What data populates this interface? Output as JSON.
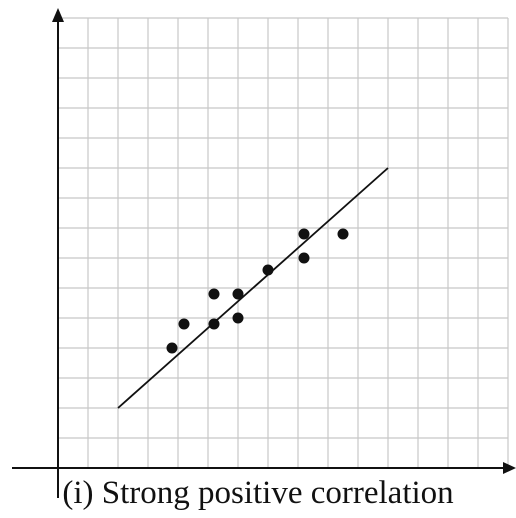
{
  "chart_data": {
    "type": "scatter",
    "title": "(i) Strong positive correlation",
    "grid": true,
    "xlim": [
      0,
      15
    ],
    "ylim": [
      0,
      15
    ],
    "points": [
      {
        "x": 3.8,
        "y": 4.0
      },
      {
        "x": 4.2,
        "y": 4.8
      },
      {
        "x": 5.2,
        "y": 4.8
      },
      {
        "x": 5.2,
        "y": 5.8
      },
      {
        "x": 6.0,
        "y": 5.0
      },
      {
        "x": 6.0,
        "y": 5.8
      },
      {
        "x": 7.0,
        "y": 6.6
      },
      {
        "x": 8.2,
        "y": 7.0
      },
      {
        "x": 8.2,
        "y": 7.8
      },
      {
        "x": 9.5,
        "y": 7.8
      }
    ],
    "trend_line": {
      "x": [
        2,
        11
      ],
      "y": [
        2,
        10
      ]
    }
  },
  "colors": {
    "grid": "#c8c8c8",
    "axis": "#111111",
    "marker": "#111111"
  }
}
